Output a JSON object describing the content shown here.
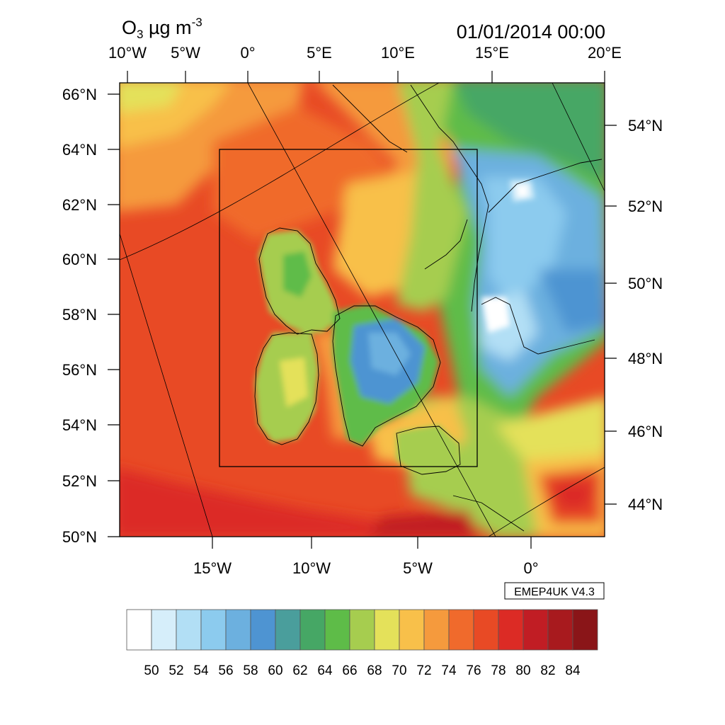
{
  "title": {
    "quantity": "O",
    "subscript": "3",
    "units": " µg m",
    "superscript": "-3",
    "timestamp": "01/01/2014 00:00"
  },
  "top_axis": [
    "10°W",
    "5°W",
    "0°",
    "5°E",
    "10°E",
    "15°E",
    "20°E"
  ],
  "left_axis": [
    "66°N",
    "64°N",
    "62°N",
    "60°N",
    "58°N",
    "56°N",
    "54°N",
    "52°N",
    "50°N"
  ],
  "bottom_axis": [
    "15°W",
    "10°W",
    "5°W",
    "0°"
  ],
  "right_axis": [
    "54°N",
    "52°N",
    "50°N",
    "48°N",
    "46°N",
    "44°N"
  ],
  "model_label": "EMEP4UK V4.3",
  "colorbar": {
    "labels": [
      "50",
      "52",
      "54",
      "56",
      "58",
      "60",
      "62",
      "64",
      "66",
      "68",
      "70",
      "72",
      "74",
      "76",
      "78",
      "80",
      "82",
      "84"
    ],
    "colors": [
      "#ffffff",
      "#d6eefa",
      "#b2dff5",
      "#8ccbee",
      "#6cb0df",
      "#4e94d2",
      "#4a9e9c",
      "#46a765",
      "#5ebc48",
      "#a6cd4f",
      "#e4e15a",
      "#f8c04a",
      "#f59a3d",
      "#f06a2c",
      "#e84a25",
      "#dc2b25",
      "#c11d24",
      "#a81a1e",
      "#8a1518"
    ]
  }
}
